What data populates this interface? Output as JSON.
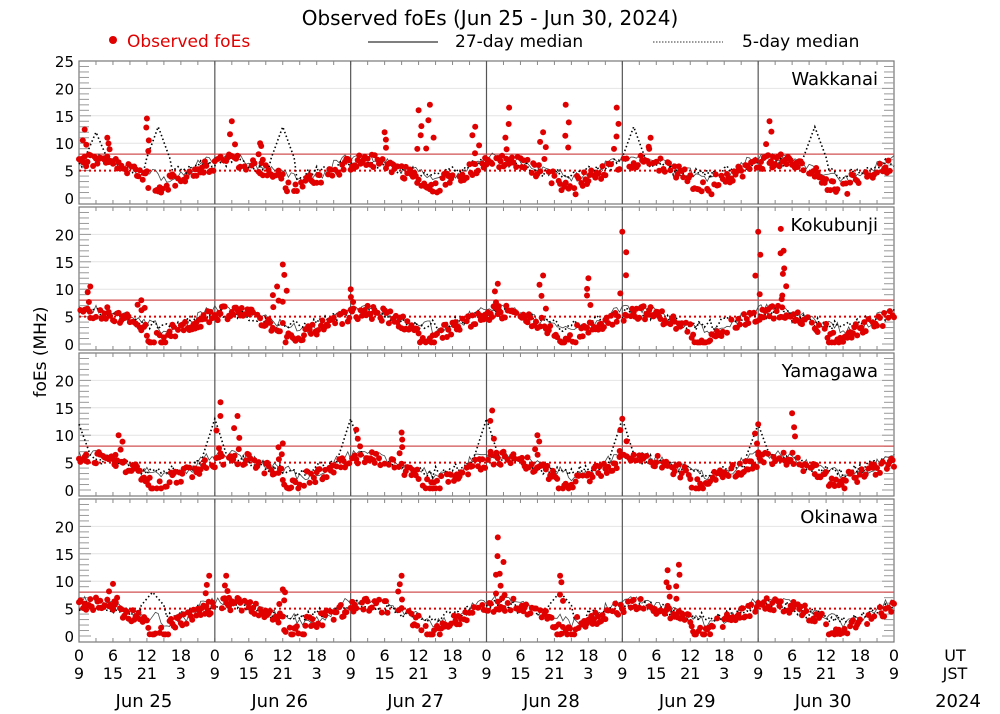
{
  "chart_data": {
    "type": "scatter",
    "title": "Observed foEs (Jun 25 - Jun 30, 2024)",
    "ylabel": "foEs (MHz)",
    "legend": {
      "placement": "top",
      "entries": [
        {
          "label": "Observed foEs",
          "style": "red-dot",
          "color": "#e00000"
        },
        {
          "label": "27-day median",
          "style": "solid-line",
          "color": "#000000"
        },
        {
          "label": "5-day median",
          "style": "dotted-line",
          "color": "#000000"
        }
      ]
    },
    "reference_lines": [
      {
        "value": 8,
        "style": "solid",
        "color": "#d05050"
      },
      {
        "value": 5,
        "style": "dotted",
        "color": "#e00000"
      }
    ],
    "xaxis": {
      "range_hours_ut": [
        0,
        144
      ],
      "ut_ticks": [
        "0",
        "6",
        "12",
        "18",
        "0",
        "6",
        "12",
        "18",
        "0",
        "6",
        "12",
        "18",
        "0",
        "6",
        "12",
        "18",
        "0",
        "6",
        "12",
        "18",
        "0",
        "6",
        "12",
        "18",
        "0"
      ],
      "jst_ticks": [
        "9",
        "15",
        "21",
        "3",
        "9",
        "15",
        "21",
        "3",
        "9",
        "15",
        "21",
        "3",
        "9",
        "15",
        "21",
        "3",
        "9",
        "15",
        "21",
        "3",
        "9",
        "15",
        "21",
        "3",
        "9"
      ],
      "ut_label": "UT",
      "jst_label": "JST",
      "days": [
        "Jun 25",
        "Jun 26",
        "Jun 27",
        "Jun 28",
        "Jun 29",
        "Jun 30"
      ],
      "year": "2024"
    },
    "panels": [
      {
        "station": "Wakkanai",
        "ylim": [
          0,
          25
        ],
        "yticks": [
          "0",
          "5",
          "10",
          "15",
          "20",
          "25"
        ],
        "observed_peaks": [
          {
            "hour": 1,
            "value": 12.5
          },
          {
            "hour": 5,
            "value": 11
          },
          {
            "hour": 12,
            "value": 14.5
          },
          {
            "hour": 27,
            "value": 14
          },
          {
            "hour": 32,
            "value": 10
          },
          {
            "hour": 54,
            "value": 12
          },
          {
            "hour": 60,
            "value": 16
          },
          {
            "hour": 62,
            "value": 17
          },
          {
            "hour": 70,
            "value": 13
          },
          {
            "hour": 76,
            "value": 16.5
          },
          {
            "hour": 82,
            "value": 12
          },
          {
            "hour": 86,
            "value": 17
          },
          {
            "hour": 95,
            "value": 16.5
          },
          {
            "hour": 101,
            "value": 11
          },
          {
            "hour": 122,
            "value": 14
          }
        ],
        "median27_level": 6,
        "median5_peaks": [
          {
            "hour": 3,
            "value": 12
          },
          {
            "hour": 14,
            "value": 13
          },
          {
            "hour": 36,
            "value": 13
          },
          {
            "hour": 98,
            "value": 13
          },
          {
            "hour": 130,
            "value": 13
          }
        ]
      },
      {
        "station": "Kokubunji",
        "ylim": [
          0,
          25
        ],
        "yticks": [
          "0",
          "5",
          "10",
          "15",
          "20"
        ],
        "observed_peaks": [
          {
            "hour": 2,
            "value": 10.5
          },
          {
            "hour": 11,
            "value": 8
          },
          {
            "hour": 36,
            "value": 14.5
          },
          {
            "hour": 35,
            "value": 10.5
          },
          {
            "hour": 48,
            "value": 10
          },
          {
            "hour": 74,
            "value": 11
          },
          {
            "hour": 82,
            "value": 12.5
          },
          {
            "hour": 90,
            "value": 12
          },
          {
            "hour": 96,
            "value": 20.5
          },
          {
            "hour": 120,
            "value": 20.5
          },
          {
            "hour": 124,
            "value": 21
          },
          {
            "hour": 124.5,
            "value": 17
          }
        ],
        "median27_level": 5,
        "median5_peaks": []
      },
      {
        "station": "Yamagawa",
        "ylim": [
          0,
          25
        ],
        "yticks": [
          "0",
          "5",
          "10",
          "15",
          "20"
        ],
        "observed_peaks": [
          {
            "hour": 7,
            "value": 10
          },
          {
            "hour": 25,
            "value": 16
          },
          {
            "hour": 28,
            "value": 13.5
          },
          {
            "hour": 36,
            "value": 8.5
          },
          {
            "hour": 49,
            "value": 11
          },
          {
            "hour": 57,
            "value": 10.5
          },
          {
            "hour": 73,
            "value": 14.5
          },
          {
            "hour": 81,
            "value": 10
          },
          {
            "hour": 96,
            "value": 13
          },
          {
            "hour": 120,
            "value": 12
          },
          {
            "hour": 126,
            "value": 14
          }
        ],
        "median27_level": 5,
        "median5_peaks": [
          {
            "hour": 0,
            "value": 12
          },
          {
            "hour": 24,
            "value": 13
          },
          {
            "hour": 48,
            "value": 13
          },
          {
            "hour": 72,
            "value": 13
          },
          {
            "hour": 96,
            "value": 13
          },
          {
            "hour": 120,
            "value": 12
          }
        ]
      },
      {
        "station": "Okinawa",
        "ylim": [
          0,
          25
        ],
        "yticks": [
          "0",
          "5",
          "10",
          "15",
          "20"
        ],
        "observed_peaks": [
          {
            "hour": 6,
            "value": 9.5
          },
          {
            "hour": 23,
            "value": 11
          },
          {
            "hour": 26,
            "value": 11
          },
          {
            "hour": 36,
            "value": 8.5
          },
          {
            "hour": 57,
            "value": 11
          },
          {
            "hour": 74,
            "value": 18
          },
          {
            "hour": 75,
            "value": 13.5
          },
          {
            "hour": 85,
            "value": 11
          },
          {
            "hour": 104,
            "value": 12
          },
          {
            "hour": 106,
            "value": 13
          }
        ],
        "median27_level": 5,
        "median5_peaks": [
          {
            "hour": 13,
            "value": 8
          },
          {
            "hour": 85,
            "value": 8
          }
        ]
      }
    ]
  }
}
